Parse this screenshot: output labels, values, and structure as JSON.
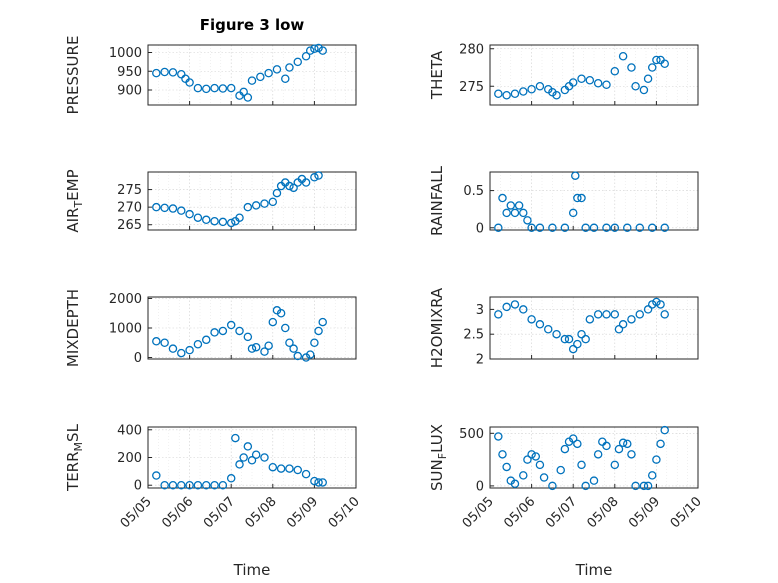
{
  "chart_data": {
    "type": "scatter",
    "title": "Figure 3 low",
    "xlabel": "Time",
    "colors": {
      "series": "#0072BD",
      "axis": "#262626",
      "grid": "#cfcfcf"
    },
    "x_ticks": [
      "05/05",
      "05/06",
      "05/07",
      "05/08",
      "05/09",
      "05/10"
    ],
    "x_range_days": [
      5,
      10
    ],
    "grid": "on",
    "marker": "circle-open",
    "panels": [
      {
        "id": "pressure",
        "ylabel": "PRESSURE",
        "ylim": [
          860,
          1020
        ],
        "yticks": [
          900,
          950,
          1000
        ],
        "series": {
          "x": [
            5.2,
            5.4,
            5.6,
            5.8,
            5.9,
            6.0,
            6.2,
            6.4,
            6.6,
            6.8,
            7.0,
            7.2,
            7.3,
            7.4,
            7.5,
            7.7,
            7.9,
            8.1,
            8.3,
            8.4,
            8.6,
            8.8,
            8.9,
            9.0,
            9.1,
            9.2
          ],
          "y": [
            945,
            948,
            947,
            942,
            930,
            920,
            905,
            903,
            905,
            904,
            905,
            885,
            895,
            880,
            925,
            935,
            945,
            955,
            930,
            960,
            975,
            990,
            1005,
            1010,
            1012,
            1005
          ]
        }
      },
      {
        "id": "theta",
        "ylabel": "THETA",
        "ylim": [
          272.5,
          280.5
        ],
        "yticks": [
          275,
          280
        ],
        "series": {
          "x": [
            5.2,
            5.4,
            5.6,
            5.8,
            6.0,
            6.2,
            6.4,
            6.5,
            6.6,
            6.8,
            6.9,
            7.0,
            7.2,
            7.4,
            7.6,
            7.8,
            8.0,
            8.2,
            8.4,
            8.5,
            8.7,
            8.8,
            8.9,
            9.0,
            9.1,
            9.2
          ],
          "y": [
            274,
            273.8,
            274,
            274.3,
            274.6,
            275,
            274.6,
            274.2,
            273.8,
            274.5,
            275,
            275.5,
            276,
            275.8,
            275.4,
            275.2,
            277,
            279,
            277.5,
            275,
            274.5,
            276,
            277.5,
            278.5,
            278.5,
            278
          ]
        }
      },
      {
        "id": "air_temp",
        "ylabel": "AIR_TEMP",
        "ylim": [
          263.5,
          280
        ],
        "yticks": [
          265,
          270,
          275
        ],
        "series": {
          "x": [
            5.2,
            5.4,
            5.6,
            5.8,
            6.0,
            6.2,
            6.4,
            6.6,
            6.8,
            7.0,
            7.1,
            7.2,
            7.4,
            7.6,
            7.8,
            8.0,
            8.1,
            8.2,
            8.3,
            8.4,
            8.5,
            8.6,
            8.7,
            8.8,
            9.0,
            9.1
          ],
          "y": [
            270,
            269.8,
            269.6,
            269,
            268,
            267,
            266.4,
            266,
            265.8,
            265.5,
            266,
            267,
            270,
            270.5,
            271,
            271.5,
            274,
            276,
            277,
            276,
            275.5,
            277,
            278,
            277,
            278.5,
            279
          ]
        }
      },
      {
        "id": "rainfall",
        "ylabel": "RAINFALL",
        "ylim": [
          -0.03,
          0.75
        ],
        "yticks": [
          0,
          0.5
        ],
        "series": {
          "x": [
            5.2,
            5.3,
            5.4,
            5.5,
            5.6,
            5.7,
            5.8,
            5.9,
            6.0,
            6.2,
            6.5,
            6.8,
            7.0,
            7.05,
            7.1,
            7.2,
            7.3,
            7.5,
            7.8,
            8.0,
            8.3,
            8.6,
            8.9,
            9.2
          ],
          "y": [
            0,
            0.4,
            0.2,
            0.3,
            0.2,
            0.3,
            0.2,
            0.1,
            0,
            0,
            0,
            0,
            0.2,
            0.7,
            0.4,
            0.4,
            0,
            0,
            0,
            0,
            0,
            0,
            0,
            0
          ]
        }
      },
      {
        "id": "mixdepth",
        "ylabel": "MIXDEPTH",
        "ylim": [
          -50,
          2050
        ],
        "yticks": [
          0,
          1000,
          2000
        ],
        "series": {
          "x": [
            5.2,
            5.4,
            5.6,
            5.8,
            6.0,
            6.2,
            6.4,
            6.6,
            6.8,
            7.0,
            7.2,
            7.4,
            7.5,
            7.6,
            7.8,
            7.9,
            8.0,
            8.1,
            8.2,
            8.3,
            8.4,
            8.5,
            8.6,
            8.8,
            8.9,
            9.0,
            9.1,
            9.2
          ],
          "y": [
            550,
            500,
            300,
            150,
            250,
            450,
            600,
            850,
            900,
            1100,
            900,
            700,
            300,
            350,
            200,
            400,
            1200,
            1600,
            1500,
            1000,
            500,
            300,
            50,
            0,
            100,
            500,
            900,
            1200
          ]
        }
      },
      {
        "id": "h2omixra",
        "ylabel": "H2OMIXRA",
        "ylim": [
          2,
          3.25
        ],
        "yticks": [
          2,
          2.5,
          3
        ],
        "series": {
          "x": [
            5.2,
            5.4,
            5.6,
            5.8,
            6.0,
            6.2,
            6.4,
            6.6,
            6.8,
            6.9,
            7.0,
            7.1,
            7.2,
            7.3,
            7.4,
            7.6,
            7.8,
            8.0,
            8.1,
            8.2,
            8.4,
            8.6,
            8.8,
            8.9,
            9.0,
            9.1,
            9.2
          ],
          "y": [
            2.9,
            3.05,
            3.1,
            3.0,
            2.8,
            2.7,
            2.6,
            2.5,
            2.4,
            2.4,
            2.2,
            2.3,
            2.5,
            2.4,
            2.8,
            2.9,
            2.9,
            2.9,
            2.6,
            2.7,
            2.8,
            2.9,
            3.0,
            3.1,
            3.15,
            3.1,
            2.9
          ]
        }
      },
      {
        "id": "terr_msl",
        "ylabel": "TERR_MSL",
        "ylim": [
          -20,
          420
        ],
        "yticks": [
          0,
          200,
          400
        ],
        "series": {
          "x": [
            5.2,
            5.4,
            5.6,
            5.8,
            6.0,
            6.2,
            6.4,
            6.6,
            6.8,
            7.0,
            7.1,
            7.2,
            7.3,
            7.4,
            7.5,
            7.6,
            7.8,
            8.0,
            8.2,
            8.4,
            8.6,
            8.8,
            9.0,
            9.1,
            9.2
          ],
          "y": [
            70,
            0,
            0,
            0,
            0,
            0,
            0,
            0,
            0,
            50,
            340,
            150,
            200,
            280,
            180,
            220,
            200,
            130,
            120,
            120,
            110,
            80,
            30,
            20,
            20
          ]
        }
      },
      {
        "id": "sun_flux",
        "ylabel": "SUN_FLUX",
        "ylim": [
          -20,
          560
        ],
        "yticks": [
          0,
          500
        ],
        "series": {
          "x": [
            5.2,
            5.3,
            5.4,
            5.5,
            5.6,
            5.8,
            5.9,
            6.0,
            6.1,
            6.2,
            6.3,
            6.5,
            6.7,
            6.8,
            6.9,
            7.0,
            7.1,
            7.2,
            7.3,
            7.5,
            7.6,
            7.7,
            7.8,
            8.0,
            8.1,
            8.2,
            8.3,
            8.4,
            8.5,
            8.7,
            8.8,
            8.9,
            9.0,
            9.1,
            9.2
          ],
          "y": [
            470,
            300,
            180,
            50,
            20,
            100,
            250,
            300,
            280,
            200,
            80,
            0,
            150,
            350,
            420,
            450,
            400,
            200,
            0,
            50,
            300,
            420,
            380,
            200,
            350,
            410,
            400,
            300,
            0,
            0,
            0,
            100,
            250,
            400,
            530
          ]
        }
      }
    ]
  }
}
